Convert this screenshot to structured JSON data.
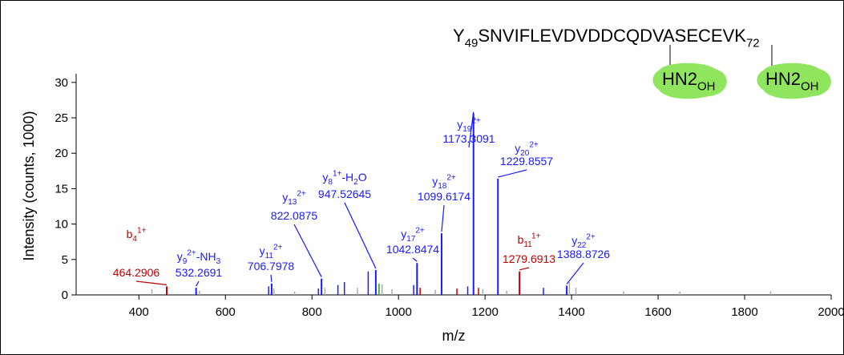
{
  "chart_data": {
    "type": "spectrum",
    "xlabel": "m/z",
    "ylabel": "Intensity (counts, 1000)",
    "xlim": [
      255,
      2000
    ],
    "ylim": [
      0,
      31
    ],
    "xticks": [
      400,
      600,
      800,
      1000,
      1200,
      1400,
      1600,
      1800,
      2000
    ],
    "yticks": [
      0,
      5,
      10,
      15,
      20,
      25,
      30
    ],
    "peptide": [
      {
        "text": "Y",
        "pos": "base"
      },
      {
        "text": "49",
        "pos": "sub"
      },
      {
        "text": "SNVIFLEVDVDDCQDVASECEVK",
        "pos": "base"
      },
      {
        "text": "72",
        "pos": "sub"
      }
    ],
    "modifications": [
      [
        {
          "text": "HN2",
          "pos": "base"
        },
        {
          "text": "OH",
          "pos": "sub"
        }
      ],
      [
        {
          "text": "HN2",
          "pos": "base"
        },
        {
          "text": "OH",
          "pos": "sub"
        }
      ]
    ],
    "modification_color": "#8fe65e",
    "peaks": [
      {
        "label": [
          {
            "text": "b",
            "pos": "base"
          },
          {
            "text": "4",
            "pos": "sub"
          },
          {
            "text": "1+",
            "pos": "sup"
          }
        ],
        "mz": 464.2906,
        "intensity": 1.2,
        "color": "#c00000"
      },
      {
        "label": [
          {
            "text": "y",
            "pos": "base"
          },
          {
            "text": "9",
            "pos": "sub"
          },
          {
            "text": "2+",
            "pos": "sup"
          },
          {
            "text": "-NH",
            "pos": "base"
          },
          {
            "text": "3",
            "pos": "sub"
          }
        ],
        "mz": 532.2691,
        "intensity": 1.0,
        "color": "#1a1aff"
      },
      {
        "label": [
          {
            "text": "y",
            "pos": "base"
          },
          {
            "text": "11",
            "pos": "sub"
          },
          {
            "text": "2+",
            "pos": "sup"
          }
        ],
        "mz": 706.7978,
        "intensity": 1.6,
        "color": "#1a1aff"
      },
      {
        "label": [
          {
            "text": "y",
            "pos": "base"
          },
          {
            "text": "13",
            "pos": "sub"
          },
          {
            "text": "2+",
            "pos": "sup"
          }
        ],
        "mz": 822.0875,
        "intensity": 2.3,
        "color": "#1a1aff"
      },
      {
        "label": [
          {
            "text": "y",
            "pos": "base"
          },
          {
            "text": "8",
            "pos": "sub"
          },
          {
            "text": "1+",
            "pos": "sup"
          },
          {
            "text": "-H",
            "pos": "base"
          },
          {
            "text": "2",
            "pos": "sub"
          },
          {
            "text": "O",
            "pos": "base"
          }
        ],
        "mz": 947.52645,
        "intensity": 3.5,
        "color": "#1a1aff"
      },
      {
        "label": [
          {
            "text": "y",
            "pos": "base"
          },
          {
            "text": "17",
            "pos": "sub"
          },
          {
            "text": "2+",
            "pos": "sup"
          }
        ],
        "mz": 1042.8474,
        "intensity": 4.5,
        "color": "#1a1aff"
      },
      {
        "label": [
          {
            "text": "y",
            "pos": "base"
          },
          {
            "text": "18",
            "pos": "sub"
          },
          {
            "text": "2+",
            "pos": "sup"
          }
        ],
        "mz": 1099.6174,
        "intensity": 8.7,
        "color": "#1a1aff"
      },
      {
        "label": [
          {
            "text": "y",
            "pos": "base"
          },
          {
            "text": "19",
            "pos": "sub"
          },
          {
            "text": "2+",
            "pos": "sup"
          }
        ],
        "mz": 1173.3091,
        "intensity": 25.6,
        "color": "#1a1aff"
      },
      {
        "label": [
          {
            "text": "y",
            "pos": "base"
          },
          {
            "text": "20",
            "pos": "sub"
          },
          {
            "text": "2+",
            "pos": "sup"
          }
        ],
        "mz": 1229.8557,
        "intensity": 16.4,
        "color": "#1a1aff"
      },
      {
        "label": [
          {
            "text": "b",
            "pos": "base"
          },
          {
            "text": "11",
            "pos": "sub"
          },
          {
            "text": "1+",
            "pos": "sup"
          }
        ],
        "mz": 1279.6913,
        "intensity": 3.3,
        "color": "#c00000"
      },
      {
        "label": [
          {
            "text": "y",
            "pos": "base"
          },
          {
            "text": "22",
            "pos": "sub"
          },
          {
            "text": "2+",
            "pos": "sup"
          }
        ],
        "mz": 1388.8726,
        "intensity": 1.3,
        "color": "#1a1aff"
      }
    ],
    "other_peaks": {
      "x": [
        430,
        540,
        700,
        712,
        760,
        815,
        830,
        860,
        875,
        905,
        930,
        955,
        962,
        985,
        1035,
        1050,
        1085,
        1135,
        1160,
        1185,
        1195,
        1250,
        1335,
        1395,
        1410,
        1520,
        1650,
        1860
      ],
      "values": [
        0.8,
        0.6,
        1.2,
        0.9,
        0.5,
        0.9,
        1.0,
        1.4,
        1.8,
        1.0,
        3.3,
        1.6,
        1.5,
        0.8,
        1.4,
        1.0,
        0.7,
        0.9,
        1.2,
        1.0,
        0.8,
        0.6,
        1.0,
        1.8,
        1.0,
        0.5,
        0.5,
        0.5
      ],
      "colors": [
        "#aaaaaa",
        "#aaaaaa",
        "#1a1aff",
        "#aaaaaa",
        "#aaaaaa",
        "#1a1aff",
        "#aaaaaa",
        "#1a1aff",
        "#1a1aff",
        "#aaaaaa",
        "#1a1aff",
        "#22aa22",
        "#aaaaaa",
        "#aaaaaa",
        "#1a1aff",
        "#c00000",
        "#aaaaaa",
        "#c00000",
        "#1a1aff",
        "#c00000",
        "#aaaaaa",
        "#aaaaaa",
        "#1a1aff",
        "#aaaaaa",
        "#aaaaaa",
        "#aaaaaa",
        "#aaaaaa",
        "#aaaaaa"
      ]
    }
  }
}
